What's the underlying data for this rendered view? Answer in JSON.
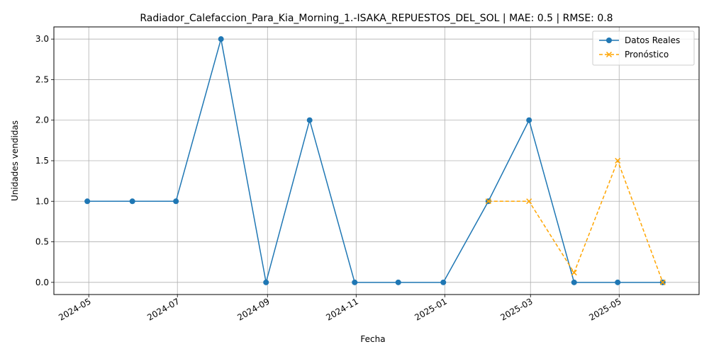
{
  "chart_data": {
    "type": "line",
    "title": "Radiador_Calefaccion_Para_Kia_Morning_1.-ISAKA_REPUESTOS_DEL_SOL | MAE: 0.5 | RMSE: 0.8",
    "xlabel": "Fecha",
    "ylabel": "Unidades vendidas",
    "ylim": [
      -0.15,
      3.15
    ],
    "xlim": [
      "2024-04-07",
      "2025-06-25"
    ],
    "x_ticks": [
      "2024-05",
      "2024-07",
      "2024-09",
      "2024-11",
      "2025-01",
      "2025-03",
      "2025-05"
    ],
    "x_tick_dates": [
      "2024-05-01",
      "2024-07-01",
      "2024-09-01",
      "2024-11-01",
      "2025-01-01",
      "2025-03-01",
      "2025-05-01"
    ],
    "y_ticks": [
      0.0,
      0.5,
      1.0,
      1.5,
      2.0,
      2.5,
      3.0
    ],
    "y_tick_labels": [
      "0.0",
      "0.5",
      "1.0",
      "1.5",
      "2.0",
      "2.5",
      "3.0"
    ],
    "grid": true,
    "legend": "top-right",
    "series": [
      {
        "name": "Datos Reales",
        "color": "#1f77b4",
        "marker": "circle",
        "linestyle": "solid",
        "x": [
          "2024-04-30",
          "2024-05-31",
          "2024-06-30",
          "2024-07-31",
          "2024-08-31",
          "2024-09-30",
          "2024-10-31",
          "2024-11-30",
          "2024-12-31",
          "2025-01-31",
          "2025-02-28",
          "2025-03-31",
          "2025-04-30",
          "2025-05-31"
        ],
        "values": [
          1,
          1,
          1,
          3,
          0,
          2,
          0,
          0,
          0,
          1,
          2,
          0,
          0,
          0
        ]
      },
      {
        "name": "Pronóstico",
        "color": "#ffa500",
        "marker": "x",
        "linestyle": "dashed",
        "x": [
          "2025-01-31",
          "2025-02-28",
          "2025-03-31",
          "2025-04-30",
          "2025-05-31"
        ],
        "values": [
          1.0,
          1.0,
          0.12,
          1.5,
          0.0
        ]
      }
    ]
  }
}
